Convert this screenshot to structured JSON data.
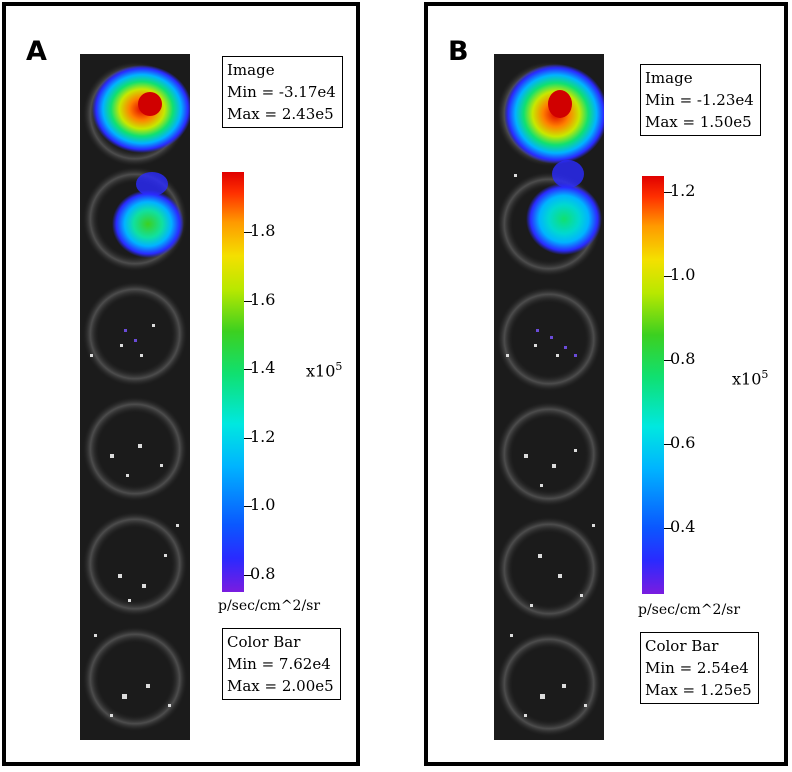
{
  "panels": [
    {
      "letter": "A",
      "image_box": {
        "title": "Image",
        "min": "Min = -3.17e4",
        "max": "Max = 2.43e5"
      },
      "scale_unit_prefix": "x10",
      "scale_unit_exp": "5",
      "ticks": [
        "1.8",
        "1.6",
        "1.4",
        "1.2",
        "1.0",
        "0.8"
      ],
      "bar_unit": "p/sec/cm^2/sr",
      "color_box": {
        "title": "Color Bar",
        "min": "Min = 7.62e4",
        "max": "Max = 2.00e5"
      }
    },
    {
      "letter": "B",
      "image_box": {
        "title": "Image",
        "min": "Min = -1.23e4",
        "max": "Max = 1.50e5"
      },
      "scale_unit_prefix": "x10",
      "scale_unit_exp": "5",
      "ticks": [
        "1.2",
        "1.0",
        "0.8",
        "0.6",
        "0.4"
      ],
      "bar_unit": "p/sec/cm^2/sr",
      "color_box": {
        "title": "Color Bar",
        "min": "Min = 2.54e4",
        "max": "Max = 1.25e5"
      }
    }
  ],
  "colors": {
    "hot": "#e00000",
    "cold": "#7a1ce0",
    "background": "#1b1b1b"
  }
}
